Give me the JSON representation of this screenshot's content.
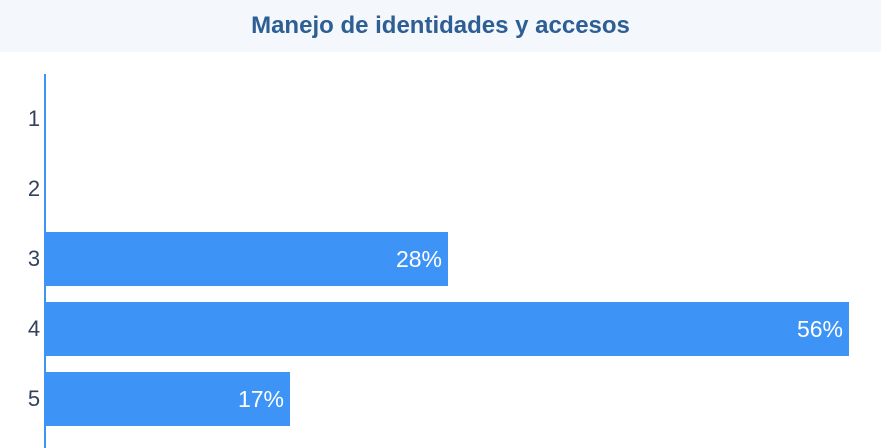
{
  "chart_data": {
    "type": "bar",
    "orientation": "horizontal",
    "title": "Manejo de identidades y accesos",
    "categories": [
      "1",
      "2",
      "3",
      "4",
      "5"
    ],
    "values": [
      0,
      0,
      28,
      56,
      17
    ],
    "value_labels": [
      "",
      "",
      "28%",
      "56%",
      "17%"
    ],
    "unit": "%",
    "xlim": [
      0,
      56
    ],
    "grid": false,
    "legend": "none",
    "colors": {
      "bar": "#3d94f6",
      "title": "#2d5e94",
      "header_background": "#f4f7fb",
      "tick_label": "#33415c",
      "bar_label": "#ffffff"
    }
  }
}
